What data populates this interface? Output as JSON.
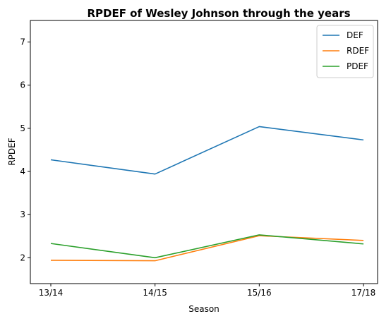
{
  "chart_data": {
    "type": "line",
    "title": "RPDEF of Wesley Johnson through the years",
    "xlabel": "Season",
    "ylabel": "RPDEF",
    "categories": [
      "13/14",
      "14/15",
      "15/16",
      "17/18"
    ],
    "ylim": [
      1.4,
      7.5
    ],
    "yticks": [
      2,
      3,
      4,
      5,
      6,
      7
    ],
    "grid": false,
    "legend_position": "top-right",
    "series": [
      {
        "name": "DEF",
        "color": "#1f77b4",
        "values": [
          4.27,
          3.94,
          5.04,
          4.73
        ]
      },
      {
        "name": "RDEF",
        "color": "#ff7f0e",
        "values": [
          1.94,
          1.93,
          2.51,
          2.4
        ]
      },
      {
        "name": "PDEF",
        "color": "#2ca02c",
        "values": [
          2.33,
          2.0,
          2.53,
          2.32
        ]
      }
    ]
  }
}
